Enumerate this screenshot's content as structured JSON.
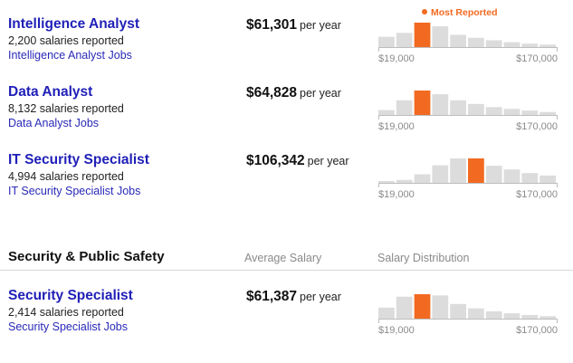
{
  "legend": {
    "label": "Most Reported",
    "color": "#f26a21"
  },
  "colors": {
    "bar": "#dcdcdc",
    "highlight": "#f26a21",
    "axis": "#8a8a8a",
    "title": "#1f1fb8"
  },
  "jobs_top": [
    {
      "title": "Intelligence Analyst",
      "count": "2,200 salaries reported",
      "link": "Intelligence Analyst Jobs",
      "salary": "$61,301",
      "period": "per year",
      "tick_min": "$19,000",
      "tick_max": "$170,000",
      "distribution": {
        "values": [
          0.42,
          0.58,
          1.0,
          0.85,
          0.5,
          0.38,
          0.28,
          0.2,
          0.14,
          0.1
        ],
        "highlight_index": 2
      }
    },
    {
      "title": "Data Analyst",
      "count": "8,132 salaries reported",
      "link": "Data Analyst Jobs",
      "salary": "$64,828",
      "period": "per year",
      "tick_min": "$19,000",
      "tick_max": "$170,000",
      "distribution": {
        "values": [
          0.2,
          0.6,
          1.0,
          0.85,
          0.6,
          0.45,
          0.32,
          0.25,
          0.18,
          0.12
        ],
        "highlight_index": 2
      }
    },
    {
      "title": "IT Security Specialist",
      "count": "4,994 salaries reported",
      "link": "IT Security Specialist Jobs",
      "salary": "$106,342",
      "period": "per year",
      "tick_min": "$19,000",
      "tick_max": "$170,000",
      "distribution": {
        "values": [
          0.05,
          0.12,
          0.35,
          0.72,
          1.0,
          1.0,
          0.7,
          0.55,
          0.4,
          0.3
        ],
        "highlight_index": 5
      }
    }
  ],
  "section": {
    "title": "Security & Public Safety",
    "col_avg": "Average Salary",
    "col_dist": "Salary Distribution"
  },
  "jobs_section": [
    {
      "title": "Security Specialist",
      "count": "2,414 salaries reported",
      "link": "Security Specialist Jobs",
      "salary": "$61,387",
      "period": "per year",
      "tick_min": "$19,000",
      "tick_max": "$170,000",
      "distribution": {
        "values": [
          0.45,
          0.9,
          1.0,
          0.95,
          0.6,
          0.42,
          0.3,
          0.22,
          0.15,
          0.1
        ],
        "highlight_index": 2
      }
    }
  ]
}
